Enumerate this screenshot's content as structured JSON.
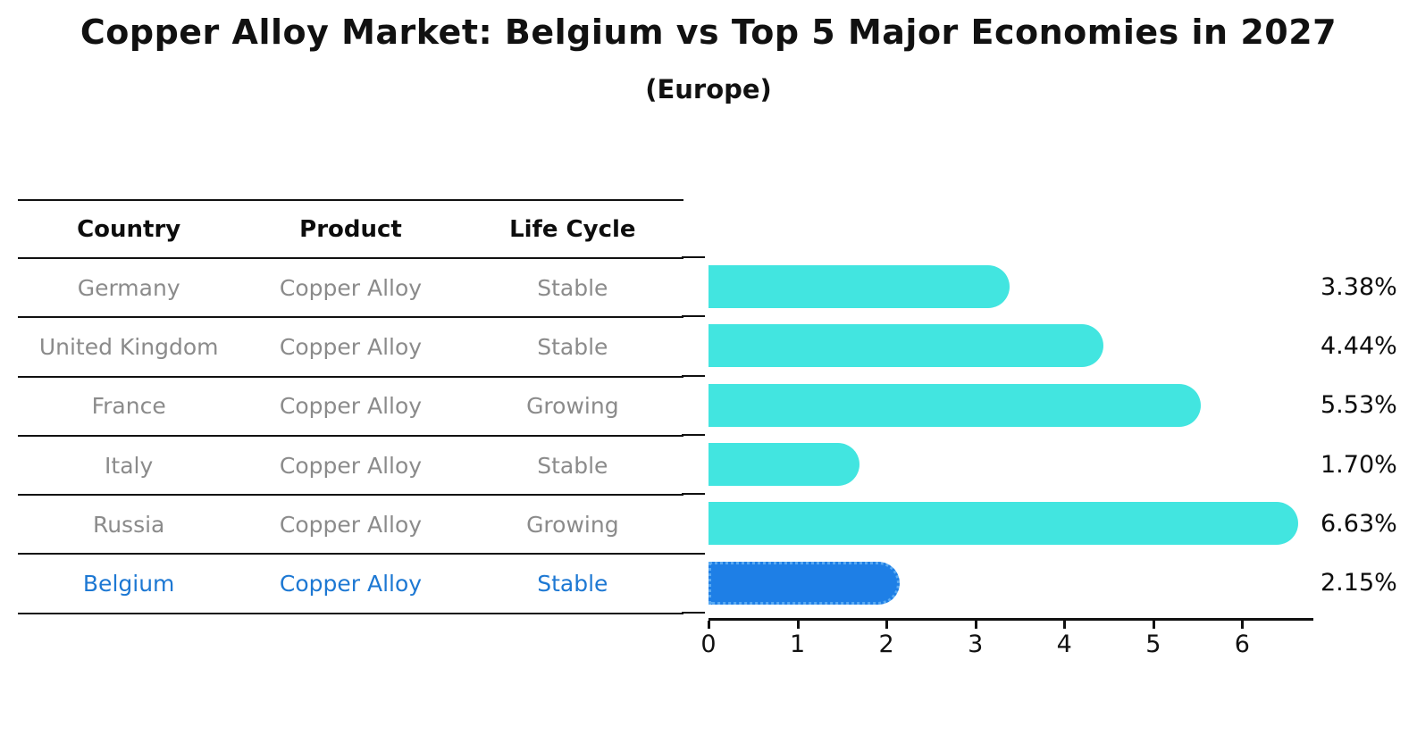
{
  "title": "Copper Alloy Market: Belgium vs Top 5 Major Economies in 2027",
  "subtitle": "(Europe)",
  "table": {
    "headers": [
      "Country",
      "Product",
      "Life Cycle"
    ],
    "rows": [
      {
        "country": "Germany",
        "product": "Copper Alloy",
        "life_cycle": "Stable",
        "highlighted": false
      },
      {
        "country": "United Kingdom",
        "product": "Copper Alloy",
        "life_cycle": "Stable",
        "highlighted": false
      },
      {
        "country": "France",
        "product": "Copper Alloy",
        "life_cycle": "Growing",
        "highlighted": false
      },
      {
        "country": "Italy",
        "product": "Copper Alloy",
        "life_cycle": "Stable",
        "highlighted": false
      },
      {
        "country": "Russia",
        "product": "Copper Alloy",
        "life_cycle": "Growing",
        "highlighted": false
      },
      {
        "country": "Belgium",
        "product": "Copper Alloy",
        "life_cycle": "Stable",
        "highlighted": true
      }
    ]
  },
  "chart_data": {
    "type": "bar",
    "orientation": "horizontal",
    "title": "Copper Alloy Market: Belgium vs Top 5 Major Economies in 2027 (Europe)",
    "categories": [
      "Germany",
      "United Kingdom",
      "France",
      "Italy",
      "Russia",
      "Belgium"
    ],
    "values": [
      3.38,
      4.44,
      5.53,
      1.7,
      6.63,
      2.15
    ],
    "value_labels": [
      "3.38%",
      "4.44%",
      "5.53%",
      "1.70%",
      "6.63%",
      "2.15%"
    ],
    "unit": "%",
    "highlighted_category": "Belgium",
    "xlabel": "",
    "ylabel": "",
    "xlim": [
      0,
      6.8
    ],
    "x_ticks": [
      0,
      1,
      2,
      3,
      4,
      5,
      6
    ],
    "grid": false,
    "legend": false,
    "bar_color": "#42e5e0",
    "highlight_bar_color": "#1e7fe6",
    "highlight_bar_edge_color": "#5aaaf2",
    "axis_color": "#111111"
  },
  "colors": {
    "background": "#ffffff",
    "table_line": "#111111",
    "table_header_text": "#0d0d0d",
    "table_body_text": "#8b8b8b",
    "highlight_text": "#1d78d3",
    "value_label_text": "#0d0d0d"
  }
}
